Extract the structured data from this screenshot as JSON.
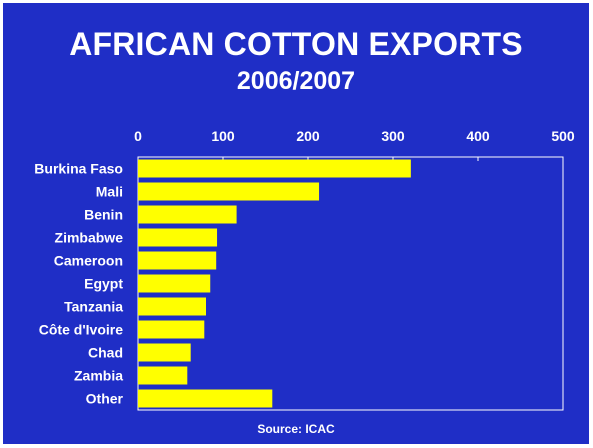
{
  "slide": {
    "title": "AFRICAN COTTON EXPORTS",
    "subtitle": "2006/2007",
    "source": "Source: ICAC"
  },
  "colors": {
    "background": "#1f2ec6",
    "bar": "#ffff00",
    "text": "#ffffff"
  },
  "chart_data": {
    "type": "bar",
    "orientation": "horizontal",
    "categories": [
      "Burkina Faso",
      "Mali",
      "Benin",
      "Zimbabwe",
      "Cameroon",
      "Egypt",
      "Tanzania",
      "Côte d'Ivoire",
      "Chad",
      "Zambia",
      "Other"
    ],
    "values": [
      321,
      213,
      116,
      93,
      92,
      85,
      80,
      78,
      62,
      58,
      158
    ],
    "xlim": [
      0,
      500
    ],
    "xticks": [
      "0",
      "100",
      "200",
      "300",
      "400",
      "500"
    ],
    "x_axis_position": "top",
    "grid": false,
    "legend": "none"
  }
}
